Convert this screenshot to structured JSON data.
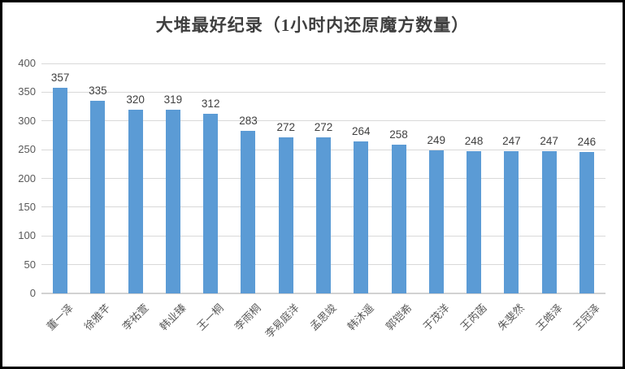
{
  "chart_data": {
    "type": "bar",
    "title": "大堆最好纪录（1小时内还原魔方数量）",
    "categories": [
      "董一泽",
      "徐雅芊",
      "李祐萱",
      "韩业臻",
      "王一桐",
      "李雨桐",
      "李易庭洋",
      "孟思竣",
      "韩沐遥",
      "郭铠希",
      "于茂洋",
      "王芮菡",
      "朱斐然",
      "王皓泽",
      "王冠泽"
    ],
    "values": [
      357,
      335,
      320,
      319,
      312,
      283,
      272,
      272,
      264,
      258,
      249,
      248,
      247,
      247,
      246
    ],
    "data_labels": [
      357,
      335,
      320,
      319,
      312,
      283,
      272,
      272,
      264,
      258,
      249,
      248,
      247,
      247,
      246
    ],
    "xlabel": "",
    "ylabel": "",
    "ylim": [
      0,
      400
    ],
    "yticks": [
      0,
      50,
      100,
      150,
      200,
      250,
      300,
      350,
      400
    ],
    "grid": true,
    "legend_position": "none",
    "bar_color": "#5b9bd5",
    "gridline_color": "#d9d9d9",
    "axis_text_color": "#595959",
    "data_label_color": "#404040",
    "title_color": "#3f3f3f",
    "frame_border_color": "#000000"
  }
}
